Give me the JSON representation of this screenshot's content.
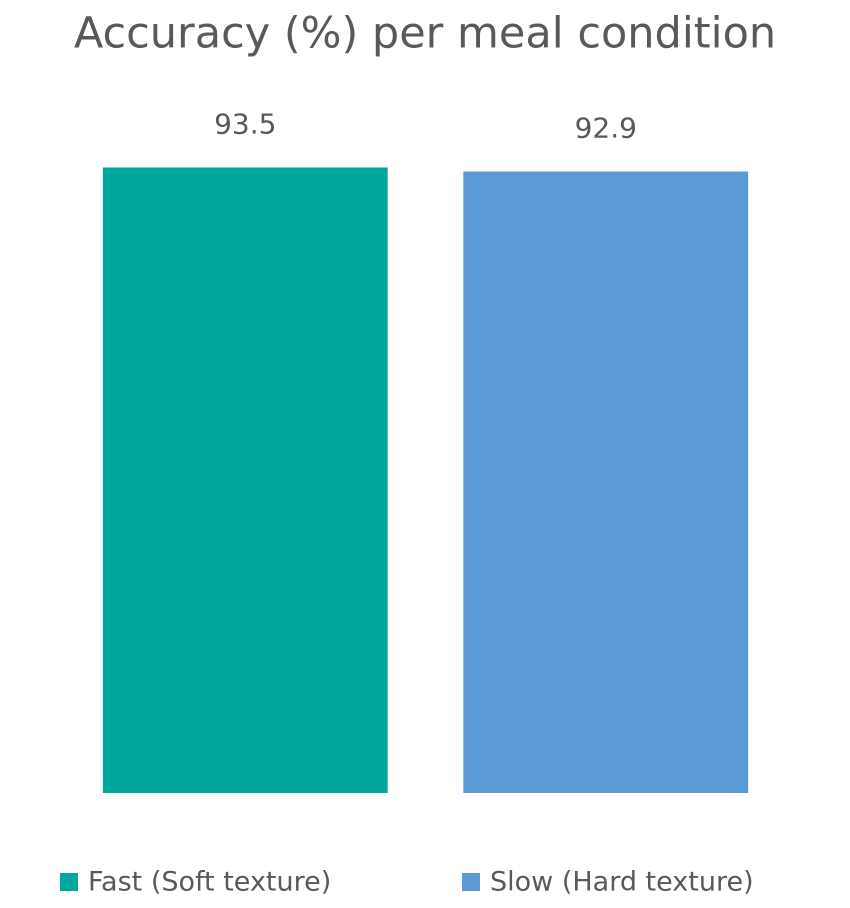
{
  "chart_data": {
    "type": "bar",
    "title": "Accuracy (%) per meal condition",
    "series": [
      {
        "name": "Fast (Soft texture)",
        "color": "#00a79d",
        "values": [
          93.5
        ]
      },
      {
        "name": "Slow (Hard texture)",
        "color": "#5b9bd5",
        "values": [
          92.9
        ]
      }
    ],
    "ylim": [
      0,
      100
    ]
  }
}
